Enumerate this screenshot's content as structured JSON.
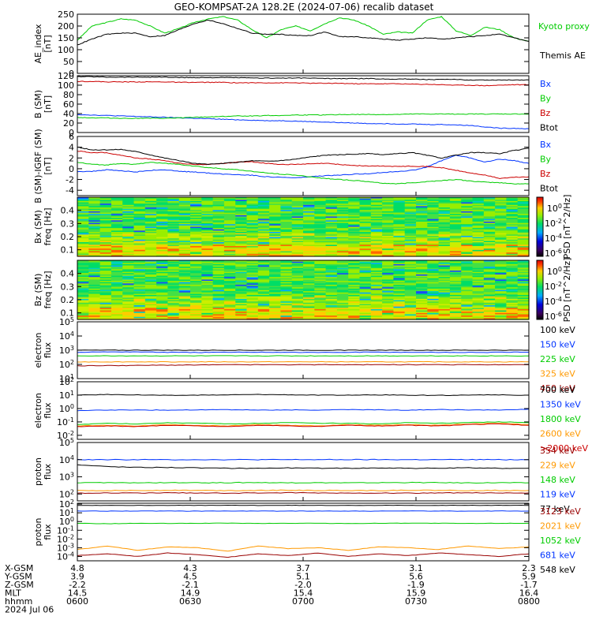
{
  "title": "GEO-KOMPSAT-2A 128.2E (2024-07-06) recalib dataset",
  "time_axis": {
    "rows": [
      {
        "label": "X-GSM",
        "values": [
          "4.8",
          "4.3",
          "3.7",
          "3.1",
          "2.3"
        ]
      },
      {
        "label": "Y-GSM",
        "values": [
          "3.9",
          "4.5",
          "5.1",
          "5.6",
          "5.9"
        ]
      },
      {
        "label": "Z-GSM",
        "values": [
          "-2.2",
          "-2.1",
          "-2.0",
          "-1.9",
          "-1.7"
        ]
      },
      {
        "label": "MLT",
        "values": [
          "14.5",
          "14.9",
          "15.4",
          "15.9",
          "16.4"
        ]
      },
      {
        "label": "hhmm",
        "values": [
          "0600",
          "0630",
          "0700",
          "0730",
          "0800"
        ]
      }
    ],
    "date": "2024 Jul 06"
  },
  "chart_data": [
    {
      "type": "line",
      "id": "ae",
      "ylabel": [
        "AE_index",
        "[nT]"
      ],
      "ylim": [
        0,
        250
      ],
      "ticks": [
        "0",
        "50",
        "100",
        "150",
        "200",
        "250"
      ],
      "series": [
        {
          "name": "Kyoto proxy AE",
          "color": "#00cc00",
          "values": [
            140,
            200,
            215,
            230,
            225,
            200,
            170,
            190,
            215,
            230,
            240,
            225,
            185,
            150,
            185,
            200,
            180,
            210,
            235,
            225,
            200,
            165,
            175,
            170,
            225,
            240,
            180,
            160,
            195,
            185,
            150,
            135
          ]
        },
        {
          "name": "Themis AE",
          "color": "#000000",
          "values": [
            120,
            145,
            165,
            170,
            170,
            155,
            160,
            185,
            210,
            225,
            210,
            190,
            170,
            165,
            165,
            160,
            160,
            175,
            155,
            155,
            150,
            145,
            140,
            145,
            150,
            145,
            150,
            155,
            160,
            165,
            150,
            135
          ]
        }
      ]
    },
    {
      "type": "line",
      "id": "b",
      "ylabel": [
        "B (SM)",
        "[nT]"
      ],
      "ylim": [
        0,
        120
      ],
      "ticks": [
        "0",
        "20",
        "40",
        "60",
        "80",
        "100",
        "120"
      ],
      "series": [
        {
          "name": "Bx",
          "color": "#0033ff",
          "values": [
            38,
            37,
            36,
            35,
            34,
            33,
            32,
            31,
            30,
            29,
            28,
            27,
            26,
            25,
            25,
            24,
            23,
            22,
            21,
            20,
            19,
            19,
            18,
            18,
            17,
            17,
            16,
            15,
            12,
            9,
            9,
            8
          ]
        },
        {
          "name": "By",
          "color": "#00cc00",
          "values": [
            32,
            31,
            31,
            30,
            30,
            30,
            30,
            31,
            32,
            33,
            34,
            35,
            35,
            36,
            36,
            37,
            37,
            37,
            38,
            38,
            38,
            38,
            38,
            39,
            39,
            39,
            39,
            39,
            39,
            39,
            39,
            39
          ]
        },
        {
          "name": "Bz",
          "color": "#cc0000",
          "values": [
            108,
            108,
            107,
            107,
            107,
            107,
            107,
            106,
            106,
            106,
            106,
            105,
            105,
            105,
            105,
            105,
            104,
            104,
            104,
            103,
            103,
            103,
            103,
            102,
            102,
            101,
            100,
            100,
            99,
            100,
            101,
            101
          ]
        },
        {
          "name": "Btot",
          "color": "#000000",
          "values": [
            118,
            118,
            117,
            117,
            117,
            117,
            117,
            116,
            116,
            116,
            116,
            116,
            115,
            115,
            115,
            115,
            115,
            114,
            114,
            114,
            114,
            113,
            113,
            113,
            112,
            112,
            112,
            111,
            111,
            111,
            111,
            111
          ]
        }
      ]
    },
    {
      "type": "line",
      "id": "db",
      "ylabel": [
        "B (SM)-IGRF (SM)",
        "[nT]"
      ],
      "ylim": [
        -5,
        6
      ],
      "ticks": [
        "-4",
        "-2",
        "0",
        "2",
        "4",
        "6"
      ],
      "series": [
        {
          "name": "Bx",
          "color": "#0033ff",
          "values": [
            -0.5,
            -0.5,
            -0.2,
            -0.4,
            -0.6,
            -0.3,
            -0.2,
            -0.5,
            -0.6,
            -0.8,
            -1.0,
            -1.1,
            -1.2,
            -1.5,
            -1.6,
            -1.7,
            -1.5,
            -1.3,
            -1.2,
            -1.0,
            -0.9,
            -0.7,
            -0.5,
            -0.3,
            0.3,
            1.5,
            2.5,
            2.0,
            1.2,
            1.8,
            1.5,
            1.0
          ]
        },
        {
          "name": "By",
          "color": "#00cc00",
          "values": [
            1.2,
            0.8,
            0.7,
            1.0,
            0.8,
            1.2,
            1.0,
            0.8,
            0.5,
            0.2,
            0.0,
            -0.2,
            -0.5,
            -0.8,
            -1.0,
            -1.2,
            -1.5,
            -1.8,
            -2.0,
            -2.2,
            -2.4,
            -2.7,
            -2.8,
            -2.6,
            -2.4,
            -2.2,
            -2.0,
            -2.3,
            -2.5,
            -2.6,
            -2.8,
            -2.8
          ]
        },
        {
          "name": "Bz",
          "color": "#cc0000",
          "values": [
            3.3,
            3.0,
            3.0,
            2.5,
            2.0,
            1.8,
            1.5,
            1.0,
            0.8,
            0.8,
            1.0,
            1.2,
            1.3,
            1.0,
            0.8,
            0.8,
            0.9,
            1.0,
            0.8,
            0.6,
            0.5,
            0.5,
            0.4,
            0.5,
            0.4,
            0.2,
            -0.3,
            -0.8,
            -1.2,
            -1.8,
            -1.6,
            -1.5
          ]
        },
        {
          "name": "Btot",
          "color": "#000000",
          "values": [
            4.0,
            3.5,
            3.5,
            3.6,
            3.2,
            2.6,
            2.0,
            1.5,
            1.0,
            0.8,
            1.0,
            1.2,
            1.5,
            1.4,
            1.5,
            1.8,
            2.2,
            2.5,
            2.6,
            2.7,
            2.8,
            2.6,
            2.8,
            3.0,
            2.5,
            2.0,
            2.5,
            3.0,
            3.0,
            2.8,
            3.4,
            3.8
          ]
        }
      ]
    },
    {
      "type": "heatmap",
      "id": "bxpsd",
      "ylabel": [
        "Bx (SM)",
        "freq [Hz]"
      ],
      "ylim": [
        0.05,
        0.5
      ],
      "ticks": [
        "0.1",
        "0.2",
        "0.3",
        "0.4"
      ],
      "colorbar": {
        "label": "PSD [nT^2/Hz]",
        "ticks": [
          "10^0",
          "10^-2",
          "10^-4",
          "10^-6"
        ]
      }
    },
    {
      "type": "heatmap",
      "id": "bzpsd",
      "ylabel": [
        "Bz (SM)",
        "freq [Hz]"
      ],
      "ylim": [
        0.05,
        0.5
      ],
      "ticks": [
        "0.1",
        "0.2",
        "0.3",
        "0.4"
      ],
      "colorbar": {
        "label": "PSD [nT^2/Hz]",
        "ticks": [
          "10^0",
          "10^-2",
          "10^-4",
          "10^-6"
        ]
      }
    },
    {
      "type": "line",
      "id": "elec_low",
      "ylabel": [
        "electron",
        "flux"
      ],
      "log": true,
      "ylim_exp": [
        1,
        5
      ],
      "ticks": [
        "10^1",
        "10^2",
        "10^3",
        "10^4",
        "10^5"
      ],
      "series": [
        {
          "name": "100 keV",
          "color": "#000000",
          "values_exp": [
            3.0,
            3.0,
            3.0,
            3.0,
            3.0,
            3.0,
            3.0,
            3.0,
            3.0,
            3.0,
            3.0,
            3.0,
            3.0,
            3.0,
            3.0,
            3.0
          ]
        },
        {
          "name": "150 keV",
          "color": "#0033ff",
          "values_exp": [
            2.85,
            2.88,
            2.88,
            2.85,
            2.84,
            2.85,
            2.86,
            2.85,
            2.84,
            2.85,
            2.86,
            2.85,
            2.85,
            2.84,
            2.85,
            2.86
          ]
        },
        {
          "name": "225 keV",
          "color": "#00cc00",
          "values_exp": [
            2.6,
            2.6,
            2.6,
            2.6,
            2.6,
            2.6,
            2.6,
            2.6,
            2.6,
            2.6,
            2.6,
            2.6,
            2.6,
            2.6,
            2.6,
            2.6
          ]
        },
        {
          "name": "325 keV",
          "color": "#ff9900",
          "values_exp": [
            2.18,
            2.18,
            2.18,
            2.18,
            2.18,
            2.18,
            2.18,
            2.18,
            2.18,
            2.18,
            2.18,
            2.18,
            2.18,
            2.18,
            2.18,
            2.18
          ]
        },
        {
          "name": "450 keV",
          "color": "#990000",
          "values_exp": [
            1.9,
            1.92,
            1.93,
            1.95,
            1.96,
            1.98,
            1.98,
            1.98,
            1.98,
            1.98,
            1.98,
            1.98,
            1.98,
            1.98,
            1.98,
            1.98
          ]
        }
      ]
    },
    {
      "type": "line",
      "id": "elec_high",
      "ylabel": [
        "electron",
        "flux"
      ],
      "log": true,
      "ylim_exp": [
        -2.3,
        2
      ],
      "ticks": [
        "10^-2",
        "10^-1",
        "10^0",
        "10^1",
        "10^2"
      ],
      "series": [
        {
          "name": "700 keV",
          "color": "#000000",
          "values_exp": [
            1.0,
            1.05,
            1.02,
            0.98,
            1.0,
            1.02,
            1.05,
            1.03,
            1.0,
            1.0,
            1.02,
            1.0,
            0.98,
            1.0,
            1.02,
            1.0
          ]
        },
        {
          "name": "1350 keV",
          "color": "#0033ff",
          "values_exp": [
            -0.15,
            -0.12,
            -0.1,
            -0.12,
            -0.1,
            -0.08,
            -0.12,
            -0.1,
            -0.12,
            -0.08,
            -0.1,
            -0.12,
            -0.08,
            -0.1,
            -0.12,
            -0.05
          ]
        },
        {
          "name": "1800 keV",
          "color": "#00cc00",
          "values_exp": [
            -1.2,
            -1.1,
            -1.15,
            -1.05,
            -1.1,
            -1.15,
            -1.1,
            -1.05,
            -1.1,
            -1.1,
            -1.15,
            -1.05,
            -1.1,
            -1.05,
            -1.0,
            -1.05
          ]
        },
        {
          "name": "2600 keV",
          "color": "#ff9900",
          "values_exp": [
            -1.3,
            -1.25,
            -1.3,
            -1.2,
            -1.25,
            -1.3,
            -1.2,
            -1.25,
            -1.3,
            -1.2,
            -1.25,
            -1.2,
            -1.25,
            -1.15,
            -1.1,
            -1.2
          ]
        },
        {
          "name": ">2000 keV",
          "color": "#cc0000",
          "values_exp": [
            -1.35,
            -1.3,
            -1.35,
            -1.25,
            -1.3,
            -1.35,
            -1.25,
            -1.3,
            -1.35,
            -1.25,
            -1.3,
            -1.25,
            -1.3,
            -1.2,
            -1.15,
            -1.25
          ]
        }
      ]
    },
    {
      "type": "line",
      "id": "prot_low",
      "ylabel": [
        "proton",
        "flux"
      ],
      "log": true,
      "ylim_exp": [
        1.6,
        5
      ],
      "ticks": [
        "10^2",
        "10^3",
        "10^4",
        "10^5"
      ],
      "series": [
        {
          "name": "354 keV",
          "color": "#990000",
          "values_exp": [
            2.05,
            2.06,
            2.05,
            2.07,
            2.06,
            2.05,
            2.06,
            2.07,
            2.06,
            2.05,
            2.06,
            2.05,
            2.06,
            2.07,
            2.05,
            2.06
          ]
        },
        {
          "name": "229 keV",
          "color": "#ff9900",
          "values_exp": [
            2.2,
            2.21,
            2.2,
            2.22,
            2.21,
            2.2,
            2.21,
            2.22,
            2.2,
            2.21,
            2.2,
            2.22,
            2.21,
            2.2,
            2.21,
            2.2
          ]
        },
        {
          "name": "148 keV",
          "color": "#00cc00",
          "values_exp": [
            2.65,
            2.66,
            2.65,
            2.66,
            2.65,
            2.66,
            2.67,
            2.65,
            2.66,
            2.65,
            2.66,
            2.67,
            2.66,
            2.65,
            2.66,
            2.65
          ]
        },
        {
          "name": "119 keV",
          "color": "#0033ff",
          "values_exp": [
            4.0,
            4.0,
            4.0,
            4.0,
            4.0,
            4.0,
            4.0,
            4.0,
            4.0,
            4.0,
            4.0,
            4.0,
            4.0,
            4.0,
            4.0,
            4.0
          ]
        },
        {
          "name": "77 keV",
          "color": "#000000",
          "values_exp": [
            3.7,
            3.6,
            3.55,
            3.55,
            3.52,
            3.5,
            3.5,
            3.52,
            3.5,
            3.5,
            3.52,
            3.5,
            3.5,
            3.52,
            3.5,
            3.5
          ]
        }
      ]
    },
    {
      "type": "line",
      "id": "prot_high",
      "ylabel": [
        "proton",
        "flux"
      ],
      "log": true,
      "ylim_exp": [
        -4.5,
        2.1
      ],
      "ticks": [
        "10^-4",
        "10^-3",
        "10^-2",
        "10^-1",
        "10^0",
        "10^1",
        "10^2"
      ],
      "series": [
        {
          "name": "3123 keV",
          "color": "#990000",
          "values_exp": [
            -3.9,
            -3.7,
            -4.0,
            -3.6,
            -3.8,
            -4.1,
            -3.7,
            -3.9,
            -3.6,
            -4.0,
            -3.7,
            -3.9,
            -3.6,
            -3.8,
            -4.0,
            -3.7
          ]
        },
        {
          "name": "2021 keV",
          "color": "#ff9900",
          "values_exp": [
            -3.2,
            -2.8,
            -3.3,
            -2.9,
            -3.0,
            -3.4,
            -2.8,
            -3.1,
            -3.0,
            -3.3,
            -2.9,
            -3.0,
            -3.2,
            -2.8,
            -3.1,
            -2.9
          ]
        },
        {
          "name": "1052 keV",
          "color": "#00cc00",
          "values_exp": [
            -0.2,
            -0.25,
            -0.2,
            -0.22,
            -0.2,
            -0.18,
            -0.22,
            -0.2,
            -0.2,
            -0.22,
            -0.2,
            -0.18,
            -0.2,
            -0.22,
            -0.2,
            -0.2
          ]
        },
        {
          "name": "681 keV",
          "color": "#0033ff",
          "values_exp": [
            1.2,
            1.2,
            1.21,
            1.2,
            1.2,
            1.21,
            1.2,
            1.2,
            1.21,
            1.2,
            1.2,
            1.21,
            1.2,
            1.2,
            1.21,
            1.2
          ]
        },
        {
          "name": "548 keV",
          "color": "#000000",
          "values_exp": [
            1.85,
            1.86,
            1.85,
            1.86,
            1.85,
            1.86,
            1.85,
            1.86,
            1.85,
            1.86,
            1.85,
            1.86,
            1.85,
            1.86,
            1.85,
            1.86
          ]
        }
      ]
    }
  ]
}
